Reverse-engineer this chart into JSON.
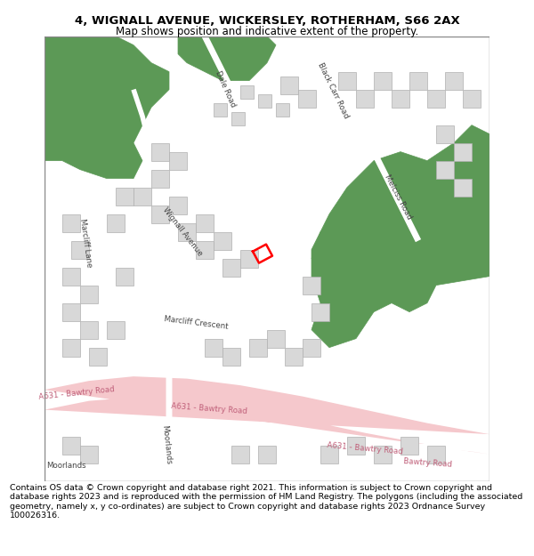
{
  "title_line1": "4, WIGNALL AVENUE, WICKERSLEY, ROTHERHAM, S66 2AX",
  "title_line2": "Map shows position and indicative extent of the property.",
  "footer_text": "Contains OS data © Crown copyright and database right 2021. This information is subject to Crown copyright and database rights 2023 and is reproduced with the permission of HM Land Registry. The polygons (including the associated geometry, namely x, y co-ordinates) are subject to Crown copyright and database rights 2023 Ordnance Survey 100026316.",
  "map_bg": "#f5f5f0",
  "road_major_color": "#f5c8cc",
  "building_color": "#d8d8d8",
  "building_edge": "#b0b0b0",
  "green_color": "#5c9956",
  "border_color": "#888888",
  "plot_color": "#ff0000",
  "title_fontsize": 9.5,
  "subtitle_fontsize": 8.5,
  "footer_fontsize": 6.8,
  "road_label_color": "#444444",
  "road_label_pink": "#c0607a"
}
